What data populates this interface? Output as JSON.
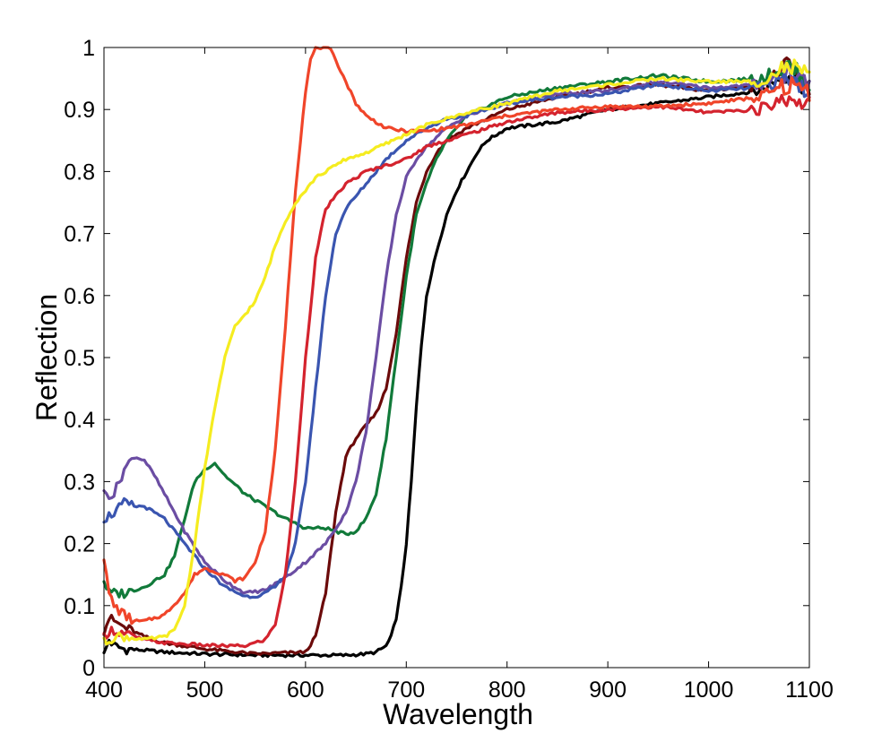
{
  "chart_data": {
    "type": "line",
    "title": "",
    "xlabel": "Wavelength",
    "ylabel": "Reflection",
    "xlim": [
      400,
      1100
    ],
    "ylim": [
      0,
      1
    ],
    "x_ticks": [
      400,
      500,
      600,
      700,
      800,
      900,
      1000,
      1100
    ],
    "x_tick_labels": [
      "400",
      "500",
      "600",
      "700",
      "800",
      "900",
      "1000",
      "1100"
    ],
    "y_ticks": [
      0,
      0.1,
      0.2,
      0.3,
      0.4,
      0.5,
      0.6,
      0.7,
      0.8,
      0.9,
      1
    ],
    "y_tick_labels": [
      "0",
      "0.1",
      "0.2",
      "0.3",
      "0.4",
      "0.5",
      "0.6",
      "0.7",
      "0.8",
      "0.9",
      "1"
    ],
    "grid": false,
    "legend": "none",
    "series": [
      {
        "name": "black",
        "color": "#000000",
        "x": [
          400,
          405,
          410,
          420,
          440,
          460,
          500,
          550,
          600,
          640,
          660,
          670,
          680,
          685,
          690,
          695,
          700,
          705,
          710,
          715,
          720,
          730,
          740,
          750,
          760,
          770,
          780,
          800,
          850,
          900,
          950,
          1000,
          1050,
          1080,
          1100
        ],
        "y": [
          0.02,
          0.045,
          0.035,
          0.03,
          0.028,
          0.025,
          0.022,
          0.02,
          0.02,
          0.02,
          0.022,
          0.025,
          0.035,
          0.05,
          0.08,
          0.13,
          0.2,
          0.3,
          0.42,
          0.52,
          0.6,
          0.67,
          0.73,
          0.77,
          0.8,
          0.83,
          0.85,
          0.87,
          0.88,
          0.9,
          0.91,
          0.92,
          0.93,
          0.96,
          0.93
        ]
      },
      {
        "name": "dark red",
        "color": "#6b0a0a",
        "x": [
          400,
          405,
          410,
          420,
          440,
          460,
          500,
          550,
          600,
          610,
          620,
          630,
          640,
          650,
          660,
          670,
          680,
          690,
          700,
          710,
          720,
          730,
          740,
          760,
          800,
          850,
          900,
          950,
          1000,
          1050,
          1080,
          1100
        ],
        "y": [
          0.06,
          0.08,
          0.075,
          0.065,
          0.05,
          0.04,
          0.03,
          0.022,
          0.025,
          0.05,
          0.12,
          0.25,
          0.34,
          0.37,
          0.39,
          0.41,
          0.45,
          0.54,
          0.66,
          0.75,
          0.8,
          0.83,
          0.85,
          0.87,
          0.9,
          0.92,
          0.935,
          0.94,
          0.93,
          0.94,
          0.97,
          0.93
        ]
      },
      {
        "name": "green",
        "color": "#117a3a",
        "x": [
          400,
          405,
          410,
          420,
          440,
          460,
          470,
          480,
          490,
          500,
          510,
          520,
          540,
          560,
          580,
          600,
          620,
          640,
          650,
          660,
          670,
          680,
          690,
          700,
          710,
          720,
          730,
          740,
          760,
          800,
          850,
          900,
          950,
          1000,
          1050,
          1080,
          1100
        ],
        "y": [
          0.14,
          0.12,
          0.12,
          0.12,
          0.13,
          0.15,
          0.18,
          0.24,
          0.3,
          0.32,
          0.33,
          0.31,
          0.28,
          0.26,
          0.24,
          0.225,
          0.225,
          0.215,
          0.22,
          0.24,
          0.28,
          0.37,
          0.5,
          0.63,
          0.73,
          0.78,
          0.82,
          0.85,
          0.89,
          0.92,
          0.935,
          0.945,
          0.955,
          0.945,
          0.95,
          0.97,
          0.94
        ]
      },
      {
        "name": "purple",
        "color": "#6b4da3",
        "x": [
          400,
          410,
          420,
          430,
          440,
          450,
          460,
          480,
          500,
          520,
          540,
          560,
          580,
          600,
          620,
          640,
          650,
          660,
          670,
          680,
          690,
          700,
          710,
          720,
          740,
          760,
          800,
          850,
          900,
          950,
          1000,
          1050,
          1080,
          1100
        ],
        "y": [
          0.28,
          0.28,
          0.32,
          0.34,
          0.335,
          0.31,
          0.28,
          0.22,
          0.17,
          0.14,
          0.12,
          0.125,
          0.145,
          0.17,
          0.2,
          0.25,
          0.3,
          0.38,
          0.5,
          0.63,
          0.73,
          0.79,
          0.82,
          0.84,
          0.87,
          0.89,
          0.91,
          0.925,
          0.93,
          0.945,
          0.935,
          0.94,
          0.96,
          0.94
        ]
      },
      {
        "name": "blue",
        "color": "#3a55b0",
        "x": [
          400,
          410,
          420,
          430,
          440,
          460,
          480,
          500,
          520,
          540,
          550,
          560,
          570,
          580,
          590,
          600,
          610,
          620,
          630,
          640,
          660,
          680,
          700,
          720,
          740,
          760,
          800,
          850,
          900,
          950,
          1000,
          1050,
          1080,
          1100
        ],
        "y": [
          0.24,
          0.25,
          0.265,
          0.26,
          0.26,
          0.24,
          0.2,
          0.16,
          0.13,
          0.115,
          0.115,
          0.12,
          0.13,
          0.15,
          0.2,
          0.3,
          0.45,
          0.6,
          0.7,
          0.74,
          0.78,
          0.82,
          0.85,
          0.87,
          0.885,
          0.89,
          0.91,
          0.92,
          0.925,
          0.94,
          0.93,
          0.935,
          0.95,
          0.93
        ]
      },
      {
        "name": "crimson",
        "color": "#d4232e",
        "x": [
          400,
          405,
          410,
          420,
          440,
          460,
          480,
          500,
          520,
          540,
          560,
          570,
          580,
          590,
          600,
          610,
          620,
          640,
          660,
          680,
          700,
          720,
          740,
          760,
          800,
          850,
          900,
          950,
          1000,
          1050,
          1080,
          1100
        ],
        "y": [
          0.05,
          0.06,
          0.06,
          0.055,
          0.045,
          0.04,
          0.038,
          0.036,
          0.035,
          0.035,
          0.045,
          0.07,
          0.15,
          0.3,
          0.5,
          0.66,
          0.74,
          0.78,
          0.8,
          0.81,
          0.82,
          0.84,
          0.85,
          0.86,
          0.88,
          0.895,
          0.9,
          0.905,
          0.895,
          0.9,
          0.92,
          0.91
        ]
      },
      {
        "name": "orange-red",
        "color": "#f0452a",
        "x": [
          400,
          402,
          405,
          410,
          420,
          430,
          440,
          460,
          480,
          490,
          500,
          510,
          520,
          530,
          540,
          550,
          560,
          570,
          580,
          590,
          600,
          605,
          610,
          615,
          620,
          625,
          630,
          640,
          650,
          660,
          680,
          700,
          720,
          740,
          760,
          800,
          850,
          900,
          950,
          1000,
          1050,
          1080,
          1100
        ],
        "y": [
          0.18,
          0.15,
          0.12,
          0.1,
          0.085,
          0.075,
          0.075,
          0.085,
          0.12,
          0.15,
          0.16,
          0.155,
          0.15,
          0.14,
          0.145,
          0.17,
          0.22,
          0.35,
          0.55,
          0.77,
          0.93,
          0.98,
          1.0,
          1.0,
          1.0,
          0.995,
          0.98,
          0.945,
          0.91,
          0.89,
          0.87,
          0.865,
          0.865,
          0.87,
          0.875,
          0.89,
          0.9,
          0.905,
          0.905,
          0.91,
          0.92,
          0.94,
          0.93
        ]
      },
      {
        "name": "yellow",
        "color": "#f5ec20",
        "x": [
          400,
          410,
          420,
          440,
          460,
          470,
          480,
          490,
          500,
          510,
          520,
          530,
          540,
          550,
          560,
          570,
          580,
          590,
          600,
          610,
          620,
          640,
          660,
          680,
          700,
          720,
          740,
          760,
          800,
          850,
          900,
          950,
          1000,
          1050,
          1080,
          1100
        ],
        "y": [
          0.04,
          0.05,
          0.05,
          0.045,
          0.05,
          0.06,
          0.1,
          0.2,
          0.32,
          0.42,
          0.5,
          0.55,
          0.57,
          0.59,
          0.63,
          0.68,
          0.72,
          0.75,
          0.77,
          0.79,
          0.8,
          0.82,
          0.83,
          0.845,
          0.86,
          0.875,
          0.885,
          0.895,
          0.91,
          0.93,
          0.94,
          0.95,
          0.945,
          0.945,
          0.97,
          0.95
        ]
      }
    ]
  }
}
